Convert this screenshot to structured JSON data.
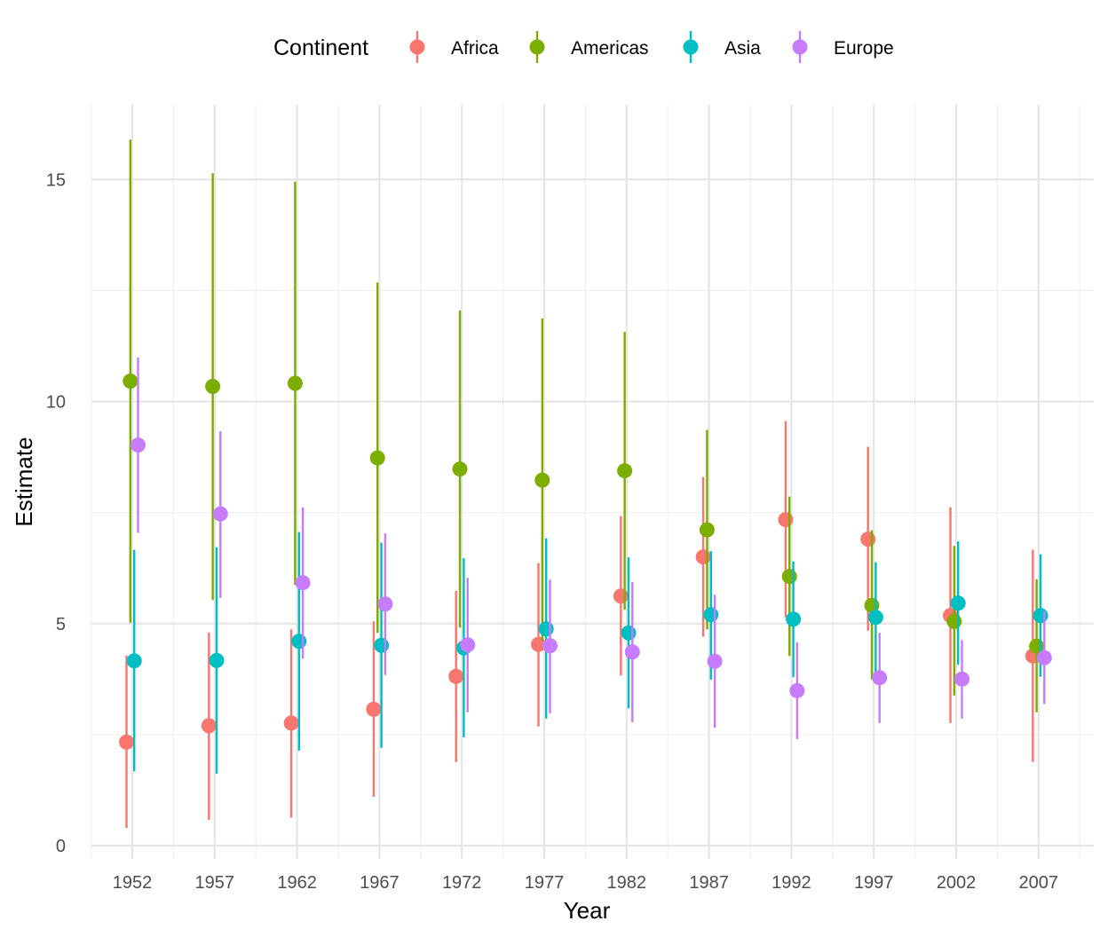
{
  "chart_data": {
    "type": "scatter",
    "subtype": "pointrange",
    "x": [
      "1952",
      "1957",
      "1962",
      "1967",
      "1972",
      "1977",
      "1982",
      "1987",
      "1992",
      "1997",
      "2002",
      "2007"
    ],
    "xlabel": "Year",
    "ylabel": "Estimate",
    "ylim": [
      0,
      16.5
    ],
    "yticks": [
      0,
      5,
      10,
      15
    ],
    "grid": true,
    "legend": {
      "title": "Continent",
      "position": "top"
    },
    "series": [
      {
        "name": "Africa",
        "color": "#F8766D",
        "estimates": [
          2.33,
          2.7,
          2.76,
          3.07,
          3.81,
          4.53,
          5.62,
          6.5,
          7.34,
          6.9,
          5.18,
          4.27
        ],
        "lower": [
          0.4,
          0.58,
          0.63,
          1.1,
          1.88,
          2.68,
          3.83,
          4.7,
          5.14,
          4.84,
          2.76,
          1.88
        ],
        "upper": [
          4.28,
          4.8,
          4.87,
          5.05,
          5.74,
          6.36,
          7.42,
          8.3,
          9.56,
          8.98,
          7.62,
          6.66
        ]
      },
      {
        "name": "Americas",
        "color": "#7CAE00",
        "estimates": [
          10.46,
          10.34,
          10.41,
          8.73,
          8.48,
          8.23,
          8.44,
          7.11,
          6.06,
          5.41,
          5.05,
          4.49
        ],
        "lower": [
          5.02,
          5.53,
          5.87,
          4.79,
          4.91,
          4.61,
          5.31,
          4.87,
          4.27,
          3.74,
          3.38,
          3.0
        ],
        "upper": [
          15.9,
          15.14,
          14.95,
          12.68,
          12.05,
          11.87,
          11.57,
          9.36,
          7.86,
          7.1,
          6.75,
          6.0
        ]
      },
      {
        "name": "Asia",
        "color": "#00BFC4",
        "estimates": [
          4.16,
          4.17,
          4.6,
          4.51,
          4.45,
          4.88,
          4.79,
          5.2,
          5.1,
          5.14,
          5.46,
          5.18
        ],
        "lower": [
          1.67,
          1.62,
          2.14,
          2.2,
          2.44,
          2.86,
          3.09,
          3.74,
          3.79,
          3.85,
          4.07,
          3.8
        ],
        "upper": [
          6.66,
          6.72,
          7.06,
          6.82,
          6.47,
          6.92,
          6.49,
          6.63,
          6.4,
          6.38,
          6.85,
          6.56
        ]
      },
      {
        "name": "Europe",
        "color": "#C77CFF",
        "estimates": [
          9.02,
          7.47,
          5.92,
          5.44,
          4.52,
          4.5,
          4.36,
          4.15,
          3.49,
          3.78,
          3.75,
          4.23
        ],
        "lower": [
          7.04,
          5.58,
          4.21,
          3.84,
          3.0,
          2.98,
          2.78,
          2.65,
          2.4,
          2.76,
          2.86,
          3.19
        ],
        "upper": [
          10.99,
          9.33,
          7.62,
          7.03,
          6.03,
          5.99,
          5.94,
          5.65,
          4.58,
          4.79,
          4.63,
          5.28
        ]
      }
    ]
  }
}
